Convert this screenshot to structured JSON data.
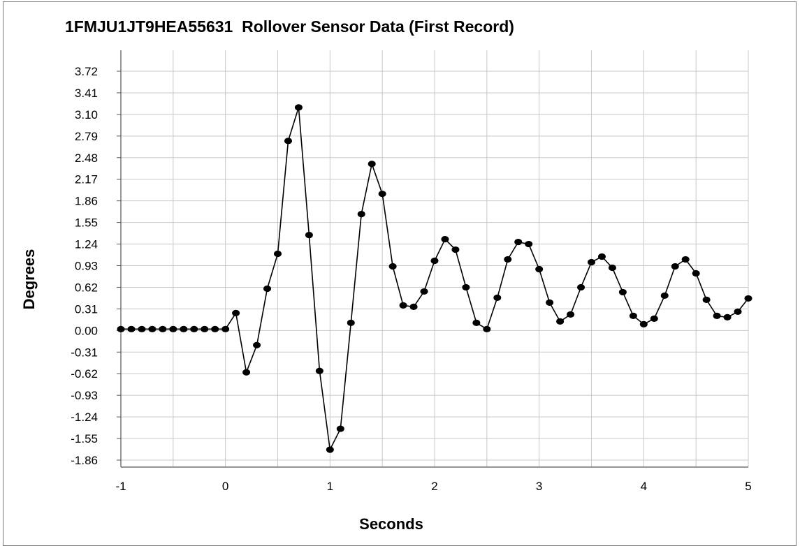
{
  "chart_data": {
    "type": "line",
    "title": "1FMJU1JT9HEA55631  Rollover Sensor Data (First Record)",
    "xlabel": "Seconds",
    "ylabel": "Degrees",
    "xlim": [
      -1,
      5
    ],
    "ylim": [
      -1.86,
      3.72
    ],
    "x_ticks": [
      "-1",
      "0",
      "1",
      "2",
      "3",
      "4",
      "5"
    ],
    "x_tick_values": [
      -1,
      0,
      1,
      2,
      3,
      4,
      5
    ],
    "y_ticks": [
      "3.72",
      "3.41",
      "3.10",
      "2.79",
      "2.48",
      "2.17",
      "1.86",
      "1.55",
      "1.24",
      "0.93",
      "0.62",
      "0.31",
      "0.00",
      "-0.31",
      "-0.62",
      "-0.93",
      "-1.24",
      "-1.55",
      "-1.86"
    ],
    "y_tick_values": [
      3.72,
      3.41,
      3.1,
      2.79,
      2.48,
      2.17,
      1.86,
      1.55,
      1.24,
      0.93,
      0.62,
      0.31,
      0.0,
      -0.31,
      -0.62,
      -0.93,
      -1.24,
      -1.55,
      -1.86
    ],
    "grid": true,
    "legend": "none",
    "line_color": "#000000",
    "marker_color": "#000000",
    "grid_color": "#c8c8c8",
    "series": [
      {
        "x": [
          -1.0,
          -0.9,
          -0.8,
          -0.7,
          -0.6,
          -0.5,
          -0.4,
          -0.3,
          -0.2,
          -0.1,
          0.0,
          0.1,
          0.2,
          0.3,
          0.4,
          0.5,
          0.6,
          0.7,
          0.8,
          0.9,
          1.0,
          1.1,
          1.2,
          1.3,
          1.4,
          1.5,
          1.6,
          1.7,
          1.8,
          1.9,
          2.0,
          2.1,
          2.2,
          2.3,
          2.4,
          2.5,
          2.6,
          2.7,
          2.8,
          2.9,
          3.0,
          3.1,
          3.2,
          3.3,
          3.4,
          3.5,
          3.6,
          3.7,
          3.8,
          3.9,
          4.0,
          4.1,
          4.2,
          4.3,
          4.4,
          4.5,
          4.6,
          4.7,
          4.8,
          4.9,
          5.0
        ],
        "y": [
          0.02,
          0.02,
          0.02,
          0.02,
          0.02,
          0.02,
          0.02,
          0.02,
          0.02,
          0.02,
          0.02,
          0.25,
          -0.6,
          -0.21,
          0.6,
          1.1,
          2.72,
          3.2,
          1.37,
          -0.58,
          -1.71,
          -1.41,
          0.11,
          1.67,
          2.39,
          1.96,
          0.92,
          0.36,
          0.34,
          0.56,
          1.0,
          1.31,
          1.16,
          0.62,
          0.11,
          0.02,
          0.47,
          1.02,
          1.27,
          1.24,
          0.88,
          0.4,
          0.13,
          0.23,
          0.62,
          0.98,
          1.06,
          0.9,
          0.55,
          0.21,
          0.09,
          0.17,
          0.5,
          0.92,
          1.02,
          0.82,
          0.44,
          0.21,
          0.19,
          0.27,
          0.46
        ]
      }
    ]
  }
}
